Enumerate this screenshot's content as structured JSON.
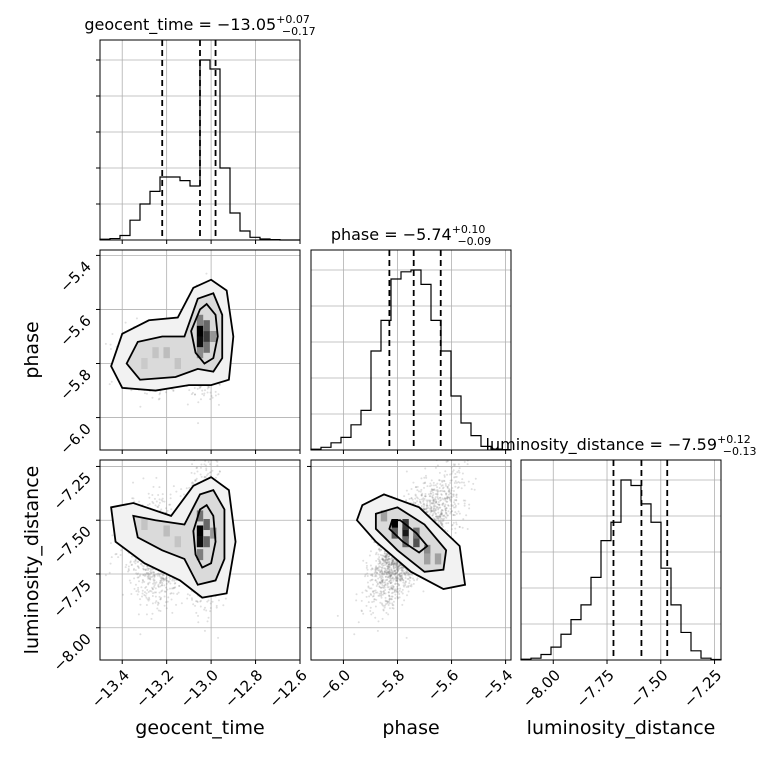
{
  "chart_data": {
    "type": "corner",
    "parameters": [
      "geocent_time",
      "phase",
      "luminosity_distance"
    ],
    "ranges": {
      "geocent_time": [
        -13.5,
        -12.6
      ],
      "phase": [
        -6.12,
        -5.38
      ],
      "luminosity_distance": [
        -8.15,
        -7.22
      ]
    },
    "ticks": {
      "geocent_time": [
        -13.4,
        -13.2,
        -13.0,
        -12.8,
        -12.6
      ],
      "phase": [
        -6.0,
        -5.8,
        -5.6,
        -5.4
      ],
      "luminosity_distance": [
        -8.0,
        -7.75,
        -7.5,
        -7.25
      ]
    },
    "tick_labels": {
      "geocent_time": [
        "−13.4",
        "−13.2",
        "−13.0",
        "−12.8",
        "−12.6"
      ],
      "phase": [
        "−6.0",
        "−5.8",
        "−5.6",
        "−5.4"
      ],
      "luminosity_distance": [
        "−8.00",
        "−7.75",
        "−7.50",
        "−7.25"
      ]
    },
    "titles": {
      "geocent_time": {
        "prefix": "geocent_time = −13.05",
        "plus": "+0.07",
        "minus": "−0.17"
      },
      "phase": {
        "prefix": "phase = −5.74",
        "plus": "+0.10",
        "minus": "−0.09"
      },
      "luminosity_distance": {
        "prefix": "luminosity_distance = −7.59",
        "plus": "+0.12",
        "minus": "−0.13"
      }
    },
    "quantiles": {
      "geocent_time": [
        -13.22,
        -13.05,
        -12.98
      ],
      "phase": [
        -5.83,
        -5.74,
        -5.64
      ],
      "luminosity_distance": [
        -7.72,
        -7.59,
        -7.47
      ]
    },
    "histograms": {
      "geocent_time": {
        "edges": [
          -13.5,
          -13.455,
          -13.41,
          -13.365,
          -13.32,
          -13.275,
          -13.23,
          -13.185,
          -13.14,
          -13.095,
          -13.05,
          -13.005,
          -12.96,
          -12.915,
          -12.87,
          -12.825,
          -12.78,
          -12.735,
          -12.69,
          -12.645,
          -12.6
        ],
        "counts": [
          0.4,
          0.8,
          2.5,
          11,
          20,
          27,
          35,
          35,
          33,
          30,
          100,
          95,
          40,
          15,
          5,
          1.5,
          0.6,
          0.2,
          0,
          0
        ]
      },
      "phase": {
        "edges": [
          -6.12,
          -6.083,
          -6.046,
          -6.009,
          -5.972,
          -5.935,
          -5.898,
          -5.861,
          -5.824,
          -5.787,
          -5.75,
          -5.713,
          -5.676,
          -5.639,
          -5.602,
          -5.565,
          -5.528,
          -5.491,
          -5.454,
          -5.417,
          -5.38
        ],
        "counts": [
          0.4,
          1.5,
          4,
          7,
          14,
          22,
          55,
          72,
          95,
          99,
          100,
          92,
          72,
          55,
          30,
          15,
          8,
          2,
          0.5,
          0.2
        ]
      },
      "luminosity_distance": {
        "edges": [
          -8.15,
          -8.1035,
          -8.057,
          -8.0105,
          -7.964,
          -7.9175,
          -7.871,
          -7.8245,
          -7.778,
          -7.7315,
          -7.685,
          -7.6385,
          -7.592,
          -7.5455,
          -7.499,
          -7.4525,
          -7.406,
          -7.3595,
          -7.313,
          -7.2665,
          -7.22
        ],
        "counts": [
          0.4,
          1,
          3,
          7,
          14,
          22,
          30,
          45,
          65,
          75,
          98,
          95,
          85,
          75,
          50,
          30,
          15,
          5,
          1,
          0.3
        ]
      }
    },
    "contours": [
      {
        "x": "geocent_time",
        "y": "phase",
        "levels": [
          [
            [
              -13.09,
              -5.68
            ],
            [
              -13.05,
              -5.6
            ],
            [
              -13.02,
              -5.58
            ],
            [
              -12.98,
              -5.62
            ],
            [
              -12.97,
              -5.7
            ],
            [
              -12.99,
              -5.78
            ],
            [
              -13.03,
              -5.8
            ],
            [
              -13.07,
              -5.76
            ]
          ],
          [
            [
              -13.38,
              -5.8
            ],
            [
              -13.33,
              -5.72
            ],
            [
              -13.22,
              -5.7
            ],
            [
              -13.12,
              -5.7
            ],
            [
              -13.06,
              -5.56
            ],
            [
              -12.99,
              -5.54
            ],
            [
              -12.95,
              -5.62
            ],
            [
              -12.95,
              -5.78
            ],
            [
              -12.99,
              -5.83
            ],
            [
              -13.06,
              -5.82
            ],
            [
              -13.16,
              -5.85
            ],
            [
              -13.32,
              -5.86
            ]
          ],
          [
            [
              -13.45,
              -5.81
            ],
            [
              -13.4,
              -5.69
            ],
            [
              -13.28,
              -5.64
            ],
            [
              -13.15,
              -5.63
            ],
            [
              -13.08,
              -5.52
            ],
            [
              -13.0,
              -5.49
            ],
            [
              -12.93,
              -5.53
            ],
            [
              -12.9,
              -5.7
            ],
            [
              -12.92,
              -5.86
            ],
            [
              -13.0,
              -5.88
            ],
            [
              -13.1,
              -5.88
            ],
            [
              -13.25,
              -5.9
            ],
            [
              -13.4,
              -5.89
            ]
          ]
        ],
        "density": [
          {
            "x": -13.05,
            "y": -5.68,
            "v": 1.0
          },
          {
            "x": -13.05,
            "y": -5.72,
            "v": 0.95
          },
          {
            "x": -13.02,
            "y": -5.7,
            "v": 0.75
          },
          {
            "x": -13.02,
            "y": -5.66,
            "v": 0.55
          },
          {
            "x": -13.05,
            "y": -5.64,
            "v": 0.45
          },
          {
            "x": -13.02,
            "y": -5.74,
            "v": 0.5
          },
          {
            "x": -13.05,
            "y": -5.76,
            "v": 0.4
          },
          {
            "x": -12.99,
            "y": -5.7,
            "v": 0.35
          },
          {
            "x": -13.2,
            "y": -5.76,
            "v": 0.18
          },
          {
            "x": -13.25,
            "y": -5.76,
            "v": 0.15
          },
          {
            "x": -13.15,
            "y": -5.8,
            "v": 0.15
          },
          {
            "x": -13.3,
            "y": -5.8,
            "v": 0.12
          }
        ]
      },
      {
        "x": "geocent_time",
        "y": "luminosity_distance",
        "levels": [
          [
            [
              -13.08,
              -7.55
            ],
            [
              -13.05,
              -7.45
            ],
            [
              -13.02,
              -7.43
            ],
            [
              -12.99,
              -7.48
            ],
            [
              -12.98,
              -7.6
            ],
            [
              -13.0,
              -7.7
            ],
            [
              -13.04,
              -7.72
            ],
            [
              -13.07,
              -7.66
            ]
          ],
          [
            [
              -13.35,
              -7.48
            ],
            [
              -13.25,
              -7.5
            ],
            [
              -13.12,
              -7.52
            ],
            [
              -13.05,
              -7.38
            ],
            [
              -12.99,
              -7.36
            ],
            [
              -12.94,
              -7.45
            ],
            [
              -12.94,
              -7.68
            ],
            [
              -12.98,
              -7.78
            ],
            [
              -13.06,
              -7.8
            ],
            [
              -13.12,
              -7.68
            ],
            [
              -13.22,
              -7.64
            ],
            [
              -13.33,
              -7.58
            ]
          ],
          [
            [
              -13.45,
              -7.44
            ],
            [
              -13.35,
              -7.42
            ],
            [
              -13.18,
              -7.48
            ],
            [
              -13.08,
              -7.34
            ],
            [
              -13.0,
              -7.3
            ],
            [
              -12.92,
              -7.36
            ],
            [
              -12.89,
              -7.6
            ],
            [
              -12.93,
              -7.84
            ],
            [
              -13.04,
              -7.86
            ],
            [
              -13.14,
              -7.78
            ],
            [
              -13.3,
              -7.7
            ],
            [
              -13.43,
              -7.6
            ]
          ]
        ],
        "density": [
          {
            "x": -13.05,
            "y": -7.55,
            "v": 1.0
          },
          {
            "x": -13.05,
            "y": -7.6,
            "v": 0.95
          },
          {
            "x": -13.02,
            "y": -7.52,
            "v": 0.55
          },
          {
            "x": -13.05,
            "y": -7.48,
            "v": 0.5
          },
          {
            "x": -13.02,
            "y": -7.6,
            "v": 0.55
          },
          {
            "x": -13.05,
            "y": -7.66,
            "v": 0.45
          },
          {
            "x": -12.99,
            "y": -7.56,
            "v": 0.35
          },
          {
            "x": -13.2,
            "y": -7.55,
            "v": 0.18
          },
          {
            "x": -13.3,
            "y": -7.52,
            "v": 0.15
          },
          {
            "x": -13.15,
            "y": -7.6,
            "v": 0.15
          }
        ]
      },
      {
        "x": "phase",
        "y": "luminosity_distance",
        "levels": [
          [
            [
              -5.82,
              -7.5
            ],
            [
              -5.79,
              -7.5
            ],
            [
              -5.73,
              -7.56
            ],
            [
              -5.69,
              -7.62
            ],
            [
              -5.72,
              -7.65
            ],
            [
              -5.78,
              -7.6
            ],
            [
              -5.83,
              -7.54
            ]
          ],
          [
            [
              -5.88,
              -7.47
            ],
            [
              -5.8,
              -7.44
            ],
            [
              -5.7,
              -7.52
            ],
            [
              -5.62,
              -7.64
            ],
            [
              -5.63,
              -7.73
            ],
            [
              -5.7,
              -7.74
            ],
            [
              -5.8,
              -7.64
            ],
            [
              -5.88,
              -7.54
            ]
          ],
          [
            [
              -5.93,
              -7.43
            ],
            [
              -5.85,
              -7.38
            ],
            [
              -5.72,
              -7.44
            ],
            [
              -5.57,
              -7.62
            ],
            [
              -5.55,
              -7.8
            ],
            [
              -5.63,
              -7.82
            ],
            [
              -5.75,
              -7.74
            ],
            [
              -5.88,
              -7.6
            ],
            [
              -5.95,
              -7.5
            ]
          ]
        ],
        "density": [
          {
            "x": -5.81,
            "y": -7.52,
            "v": 1.0
          },
          {
            "x": -5.77,
            "y": -7.56,
            "v": 0.9
          },
          {
            "x": -5.77,
            "y": -7.52,
            "v": 0.75
          },
          {
            "x": -5.73,
            "y": -7.6,
            "v": 0.65
          },
          {
            "x": -5.77,
            "y": -7.6,
            "v": 0.55
          },
          {
            "x": -5.73,
            "y": -7.56,
            "v": 0.5
          },
          {
            "x": -5.69,
            "y": -7.64,
            "v": 0.4
          },
          {
            "x": -5.65,
            "y": -7.68,
            "v": 0.3
          },
          {
            "x": -5.85,
            "y": -7.48,
            "v": 0.3
          },
          {
            "x": -5.69,
            "y": -7.68,
            "v": 0.3
          },
          {
            "x": -5.81,
            "y": -7.56,
            "v": 0.6
          }
        ]
      }
    ],
    "scatter_count": 2600,
    "colors": {
      "line": "#000000",
      "grid": "#b0b0b0",
      "points": "#808080"
    }
  }
}
